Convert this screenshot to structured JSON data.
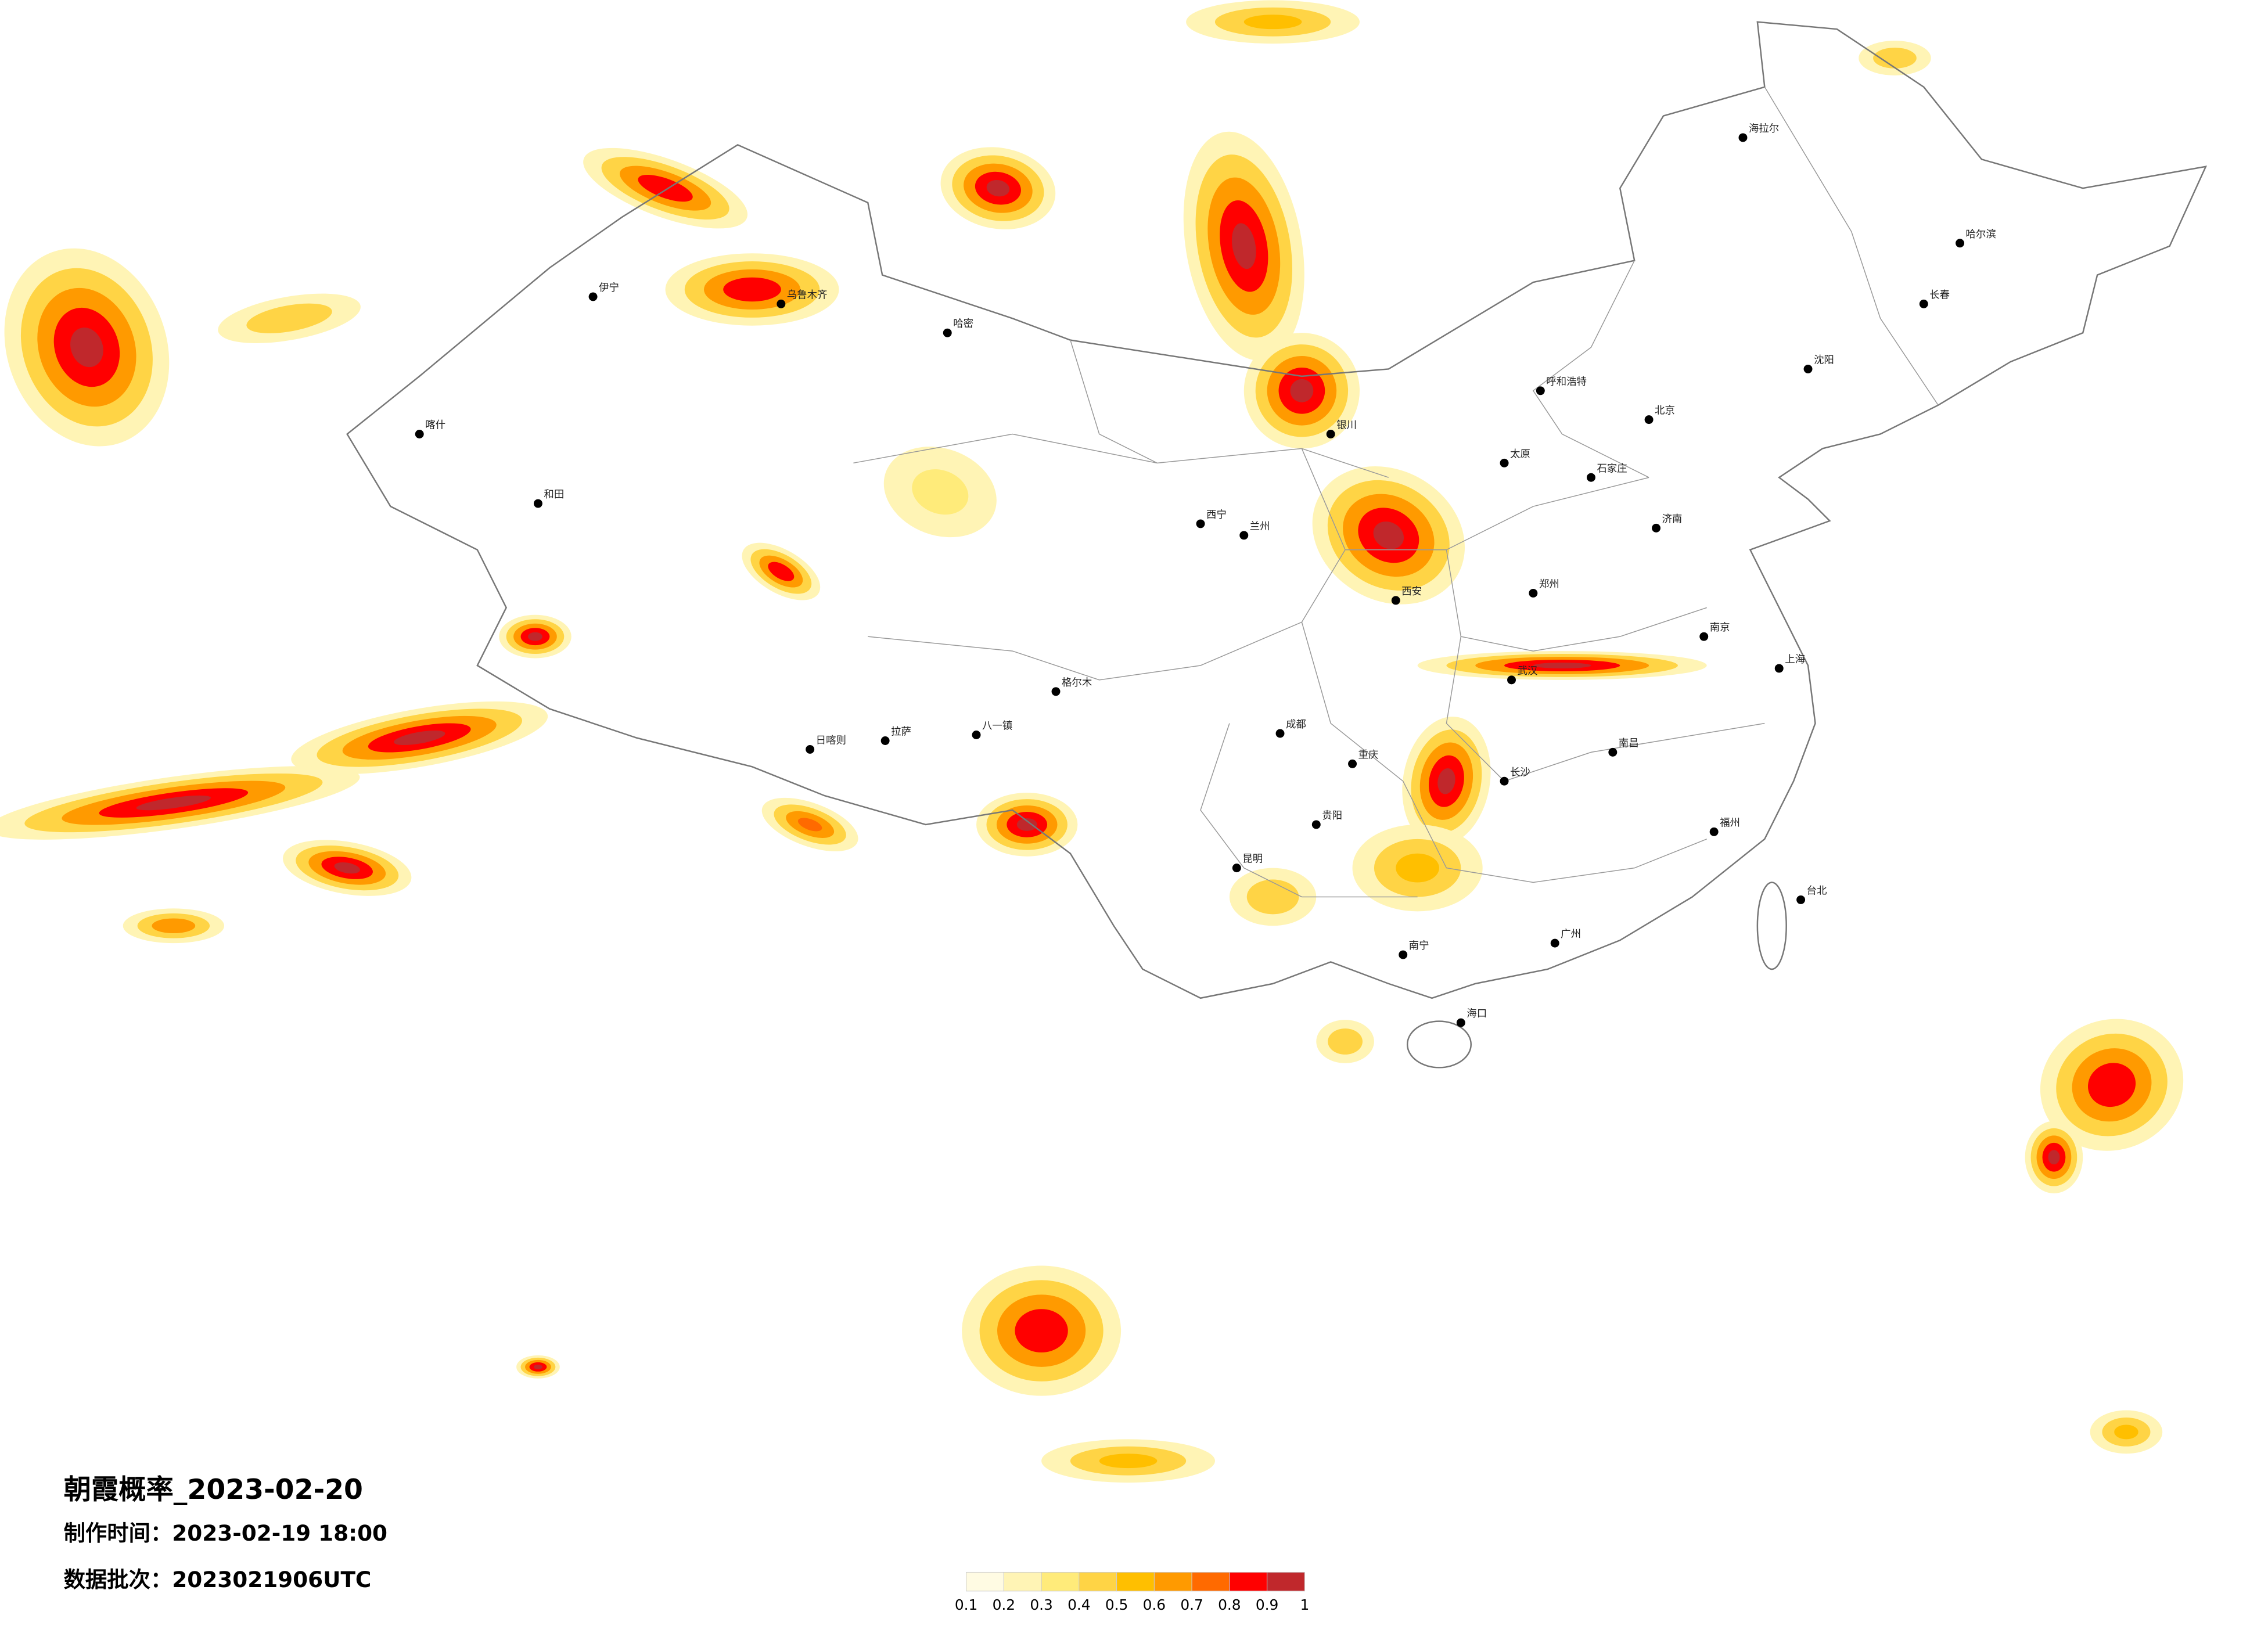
{
  "title": "朝霞概率_2023-02-20",
  "made_time": "制作时间：2023-02-19 18:00",
  "batch": "数据批次：2023021906UTC",
  "legend": {
    "ticks": [
      0.1,
      0.2,
      0.3,
      0.4,
      0.5,
      0.6,
      0.7,
      0.8,
      0.9,
      1
    ],
    "colors": [
      "#fffbe3",
      "#fff4b5",
      "#ffeb7a",
      "#ffd445",
      "#ffbf00",
      "#ff9a00",
      "#ff6a00",
      "#ff0000",
      "#c0282c"
    ]
  },
  "cities": [
    "北京",
    "上海",
    "广州",
    "武汉",
    "成都",
    "西安",
    "哈尔滨",
    "乌鲁木齐",
    "拉萨",
    "昆明",
    "重庆",
    "长沙",
    "南京",
    "郑州",
    "兰州",
    "西宁",
    "呼和浩特",
    "沈阳",
    "长春",
    "济南",
    "太原",
    "石家庄",
    "南昌",
    "福州",
    "贵阳",
    "南宁",
    "海口",
    "银川",
    "喀什",
    "和田",
    "伊宁",
    "哈密",
    "日喀则",
    "八一镇",
    "格尔木",
    "海拉尔",
    "台北"
  ]
}
